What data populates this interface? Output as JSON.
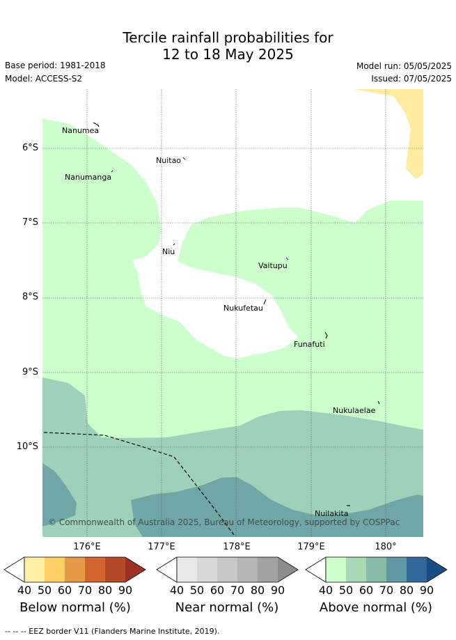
{
  "header": {
    "title_line1": "Tercile rainfall probabilities for",
    "title_line2": "12 to 18 May 2025",
    "base_period": "Base period: 1981-2018",
    "model": "Model: ACCESS-S2",
    "model_run": "Model run: 05/05/2025",
    "issued": "Issued: 07/05/2025"
  },
  "map": {
    "lat_labels": [
      "6°S",
      "7°S",
      "8°S",
      "9°S",
      "10°S"
    ],
    "lon_labels": [
      "176°E",
      "177°E",
      "178°E",
      "179°E",
      "180°"
    ],
    "places": [
      "Nanumea",
      "Nuitao",
      "Nanumanga",
      "Niu",
      "Vaitupu",
      "Nukufetau",
      "Funafuti",
      "Nukulaelae",
      "Nuilakita"
    ],
    "copyright": "© Commonwealth of Australia 2025, Bureau of Meteorology, supported by COSPPac",
    "eez_legend": "--  --  -- EEZ border V11 (Flanders Marine Institute, 2019)."
  },
  "colorbars": {
    "ticks": [
      "40",
      "50",
      "60",
      "70",
      "80",
      "90"
    ],
    "below": {
      "title": "Below normal (%)",
      "colors": [
        "#fff0a8",
        "#ffcf66",
        "#e69a48",
        "#d1652f",
        "#b34a28",
        "#9b3224"
      ]
    },
    "near": {
      "title": "Near normal (%)",
      "colors": [
        "#e8e8e8",
        "#d8d8d8",
        "#c7c7c7",
        "#b5b5b5",
        "#a2a2a2",
        "#8c8c8c"
      ]
    },
    "above": {
      "title": "Above normal (%)",
      "colors": [
        "#ccffcc",
        "#a9d9b4",
        "#86bba6",
        "#5f98a2",
        "#34689a",
        "#174e86"
      ]
    }
  },
  "colors": {
    "above40": "#ccffcc",
    "above50": "#9ed1b9",
    "above60": "#6fa6a6",
    "below40": "#ffeb9e"
  }
}
